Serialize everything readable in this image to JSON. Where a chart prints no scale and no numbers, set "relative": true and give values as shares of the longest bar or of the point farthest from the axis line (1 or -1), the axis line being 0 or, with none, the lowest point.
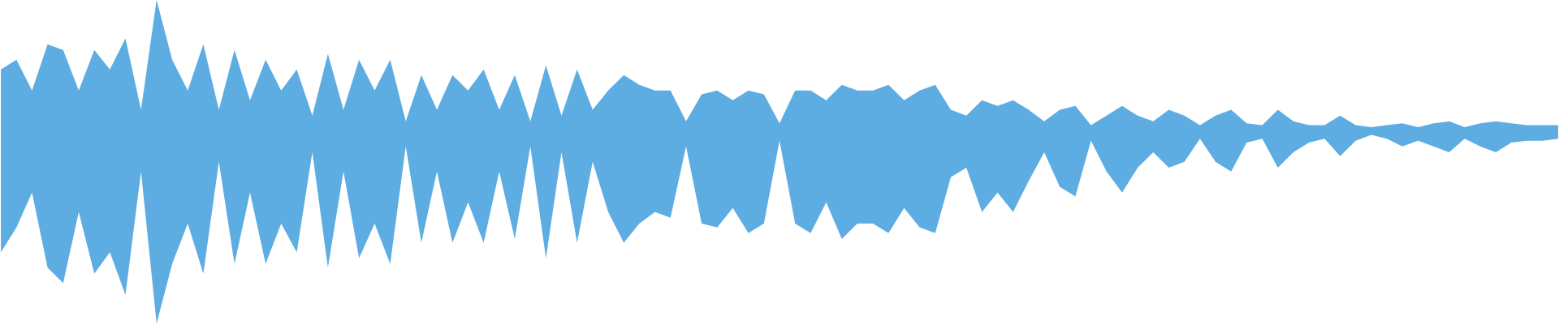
{
  "chart_data": {
    "type": "area",
    "relative": true,
    "ref_lines": [
      {
        "axis": "y",
        "value": 0,
        "color": "#5dade2"
      }
    ],
    "categories": [
      null,
      null,
      null,
      null,
      null,
      null,
      null,
      null,
      null,
      null,
      null,
      null,
      null,
      null,
      null,
      null,
      null,
      null,
      null,
      null,
      null,
      null,
      null,
      null,
      null,
      null,
      null,
      null,
      null,
      null,
      null,
      null,
      null,
      null,
      null,
      null,
      null,
      null,
      null,
      null,
      null,
      null,
      null,
      null,
      null,
      null,
      null,
      null,
      null,
      null,
      null,
      null,
      null,
      null,
      null,
      null,
      null,
      null,
      null,
      null,
      null,
      null,
      null,
      null,
      null,
      null,
      null,
      null,
      null,
      null,
      null,
      null,
      null,
      null,
      null,
      null,
      null,
      null,
      null,
      null,
      null,
      null,
      null,
      null,
      null,
      null,
      null,
      null,
      null,
      null,
      null,
      null,
      null,
      null,
      null,
      null,
      null,
      null,
      null,
      null,
      null
    ],
    "series": [
      {
        "color": "#5dade2",
        "values": [
          0.32,
          0.37,
          0.21,
          0.45,
          0.42,
          0.21,
          0.42,
          0.32,
          0.48,
          0.11,
          0.68,
          0.37,
          0.21,
          0.45,
          0.11,
          0.42,
          0.16,
          0.37,
          0.21,
          0.32,
          0.08,
          0.4,
          0.11,
          0.37,
          0.21,
          0.37,
          0.05,
          0.29,
          0.11,
          0.29,
          0.21,
          0.32,
          0.11,
          0.29,
          0.05,
          0.34,
          0.08,
          0.32,
          0.11,
          0.21,
          0.29,
          0.24,
          0.21,
          0.21,
          0.05,
          0.19,
          0.21,
          0.16,
          0.21,
          0.19,
          0.04,
          0.21,
          0.21,
          0.16,
          0.24,
          0.21,
          0.21,
          0.24,
          0.16,
          0.21,
          0.24,
          0.11,
          0.08,
          0.16,
          0.13,
          0.16,
          0.11,
          0.05,
          0.11,
          0.13,
          0.03,
          0.08,
          0.13,
          0.08,
          0.05,
          0.11,
          0.08,
          0.03,
          0.08,
          0.11,
          0.04,
          0.03,
          0.11,
          0.05,
          0.03,
          0.03,
          0.08,
          0.03,
          0.02,
          0.03,
          0.04,
          0.02,
          0.04,
          0.05,
          0.02,
          0.04,
          0.05,
          0.04,
          0.03,
          0.03,
          0.03
        ]
      },
      {
        "color": "#5dade2",
        "values": [
          -0.63,
          -0.5,
          -0.32,
          -0.71,
          -0.79,
          -0.42,
          -0.74,
          -0.63,
          -0.85,
          -0.21,
          -1.0,
          -0.69,
          -0.48,
          -0.74,
          -0.16,
          -0.69,
          -0.32,
          -0.69,
          -0.48,
          -0.63,
          -0.11,
          -0.71,
          -0.21,
          -0.66,
          -0.48,
          -0.69,
          -0.08,
          -0.58,
          -0.21,
          -0.58,
          -0.37,
          -0.58,
          -0.21,
          -0.56,
          -0.08,
          -0.66,
          -0.11,
          -0.58,
          -0.16,
          -0.42,
          -0.58,
          -0.48,
          -0.42,
          -0.45,
          -0.08,
          -0.48,
          -0.5,
          -0.4,
          -0.53,
          -0.48,
          -0.05,
          -0.48,
          -0.53,
          -0.37,
          -0.56,
          -0.48,
          -0.48,
          -0.53,
          -0.4,
          -0.5,
          -0.53,
          -0.24,
          -0.19,
          -0.42,
          -0.32,
          -0.42,
          -0.26,
          -0.11,
          -0.29,
          -0.34,
          -0.05,
          -0.21,
          -0.32,
          -0.19,
          -0.11,
          -0.19,
          -0.16,
          -0.04,
          -0.16,
          -0.21,
          -0.06,
          -0.04,
          -0.19,
          -0.11,
          -0.06,
          -0.04,
          -0.13,
          -0.05,
          -0.02,
          -0.04,
          -0.08,
          -0.05,
          -0.08,
          -0.11,
          -0.04,
          -0.08,
          -0.11,
          -0.06,
          -0.05,
          -0.05,
          -0.04
        ]
      }
    ]
  }
}
